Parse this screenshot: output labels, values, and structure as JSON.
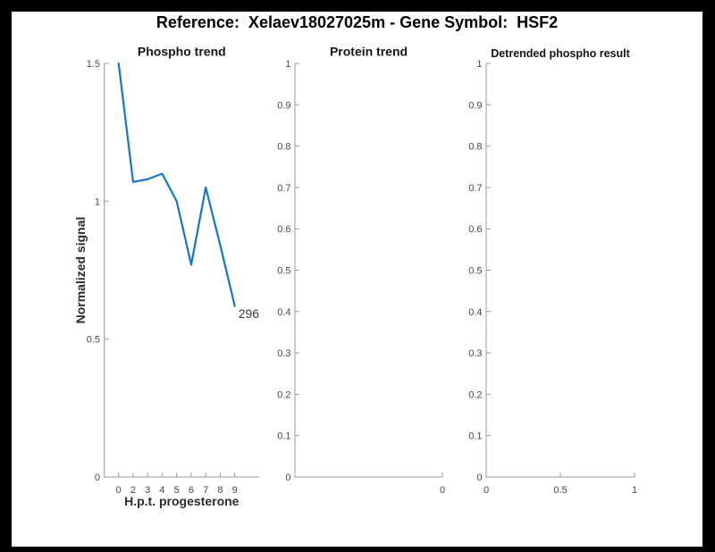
{
  "figure": {
    "title": "Reference:  Xelaev18027025m - Gene Symbol:  HSF2",
    "background_color": "#ffffff",
    "frame_color": "#000000"
  },
  "colors": {
    "line": "#1476c8",
    "axis": "#9b9b9b",
    "tick_label": "#474747"
  },
  "chart_data": [
    {
      "type": "line",
      "title": "Phospho trend",
      "xlabel": "H.p.t. progesterone",
      "ylabel": "Normalized signal",
      "categories": [
        "0",
        "2",
        "3",
        "4",
        "5",
        "6",
        "7",
        "8",
        "9"
      ],
      "values": [
        1.5,
        1.07,
        1.08,
        1.1,
        1.0,
        0.77,
        1.05,
        0.84,
        0.62
      ],
      "ylim": [
        0,
        1.5
      ],
      "yticks": [
        "0",
        "0.5",
        "1",
        "1.5"
      ],
      "annotation": "296",
      "line_color": "#1476c8",
      "grid": "off",
      "legend": "none"
    },
    {
      "type": "line",
      "title": "Protein trend",
      "xlabel": "",
      "ylabel": "",
      "values": [],
      "ylim": [
        0,
        1
      ],
      "yticks": [
        "0",
        "0.1",
        "0.2",
        "0.3",
        "0.4",
        "0.5",
        "0.6",
        "0.7",
        "0.8",
        "0.9",
        "1"
      ],
      "xticks": [
        "0"
      ],
      "grid": "off",
      "legend": "none"
    },
    {
      "type": "line",
      "title": "Detrended phospho result",
      "xlabel": "",
      "ylabel": "",
      "values": [],
      "ylim": [
        0,
        1
      ],
      "yticks": [
        "0",
        "0.1",
        "0.2",
        "0.3",
        "0.4",
        "0.5",
        "0.6",
        "0.7",
        "0.8",
        "0.9",
        "1"
      ],
      "xticks": [
        "0",
        "0.5",
        "1"
      ],
      "grid": "off",
      "legend": "none"
    }
  ]
}
